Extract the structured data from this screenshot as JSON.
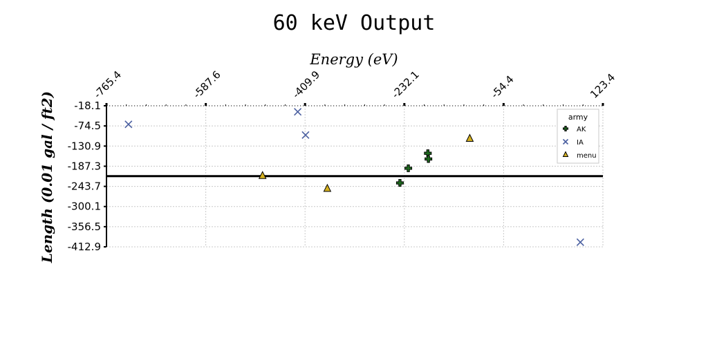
{
  "chart_data": {
    "type": "scatter",
    "title": "60 keV Output",
    "xlabel": "Energy (eV)",
    "ylabel": "Length (0.01 gal / ft2)",
    "xlim": [
      -765.4,
      123.4
    ],
    "ylim": [
      -412.9,
      -18.1
    ],
    "x_ticks": [
      "-765.4",
      "-587.6",
      "-409.9",
      "-232.1",
      "-54.4",
      "123.4"
    ],
    "y_ticks": [
      "-18.1",
      "-74.5",
      "-130.9",
      "-187.3",
      "-243.7",
      "-300.1",
      "-356.5",
      "-412.9"
    ],
    "x_axis_position": "top",
    "grid": true,
    "hline": -215,
    "legend": {
      "title": "army",
      "placement": "top-right"
    },
    "series": [
      {
        "name": "AK",
        "marker": "plus",
        "color": "#1f6b1f",
        "points": [
          [
            -240,
            -234
          ],
          [
            -225,
            -193
          ],
          [
            -190,
            -151
          ],
          [
            -189,
            -167
          ]
        ]
      },
      {
        "name": "IA",
        "marker": "x",
        "color": "#4a5fa0",
        "points": [
          [
            -726,
            -70
          ],
          [
            -423,
            -35
          ],
          [
            -409,
            -100
          ],
          [
            83,
            -400
          ]
        ]
      },
      {
        "name": "menu",
        "marker": "triangle",
        "color": "#d4b020",
        "points": [
          [
            -486,
            -214
          ],
          [
            -370,
            -250
          ],
          [
            -115,
            -110
          ]
        ]
      }
    ]
  }
}
